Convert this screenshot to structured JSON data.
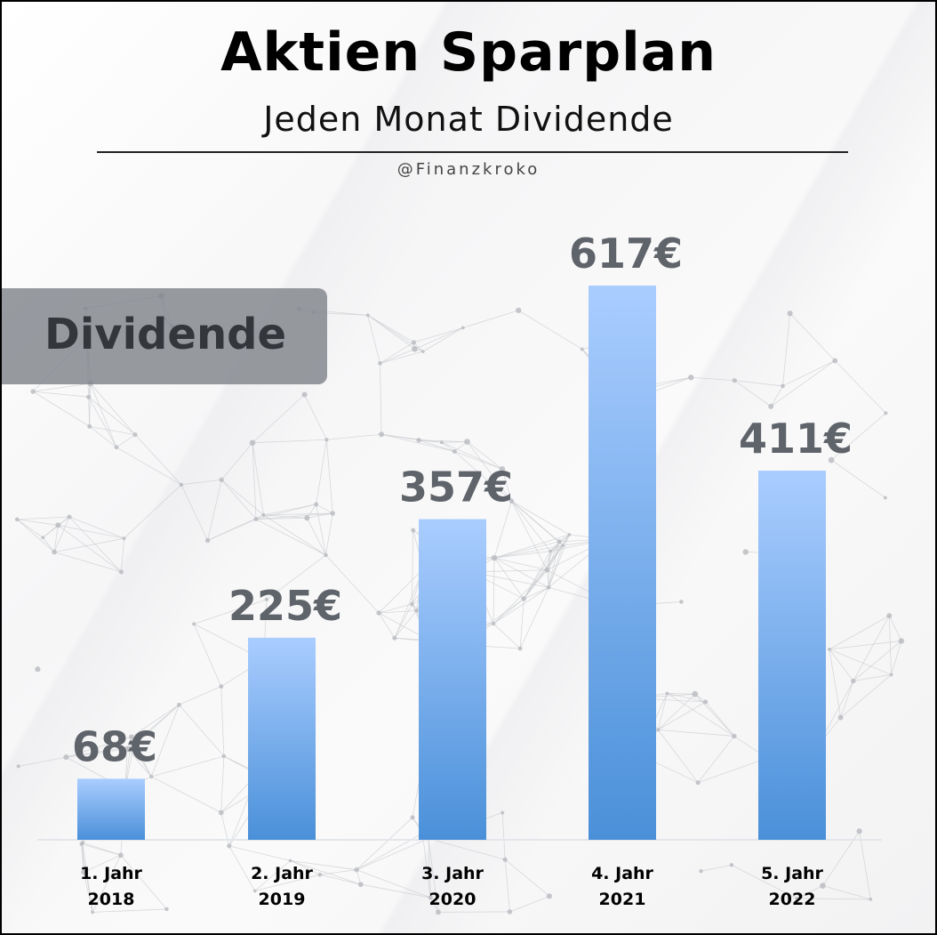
{
  "header": {
    "title": "Aktien Sparplan",
    "subtitle": "Jeden Monat Dividende",
    "handle": "@Finanzkroko"
  },
  "badge": {
    "label": "Dividende"
  },
  "colors": {
    "bar_top": "#aacdff",
    "bar_bottom": "#4a90d9",
    "value_label": "#5f646b",
    "badge_bg": "#80848a",
    "badge_text": "#33373c"
  },
  "chart_data": {
    "type": "bar",
    "title": "Aktien Sparplan",
    "subtitle": "Jeden Monat Dividende",
    "categories": [
      "1. Jahr",
      "2. Jahr",
      "3. Jahr",
      "4. Jahr",
      "5. Jahr"
    ],
    "years": [
      "2018",
      "2019",
      "2020",
      "2021",
      "2022"
    ],
    "series": [
      {
        "name": "Dividende",
        "values": [
          68,
          225,
          357,
          617,
          411
        ],
        "labels": [
          "68€",
          "225€",
          "357€",
          "617€",
          "411€"
        ]
      }
    ],
    "ylim": [
      0,
      617
    ],
    "grid": false,
    "legend": "none"
  }
}
